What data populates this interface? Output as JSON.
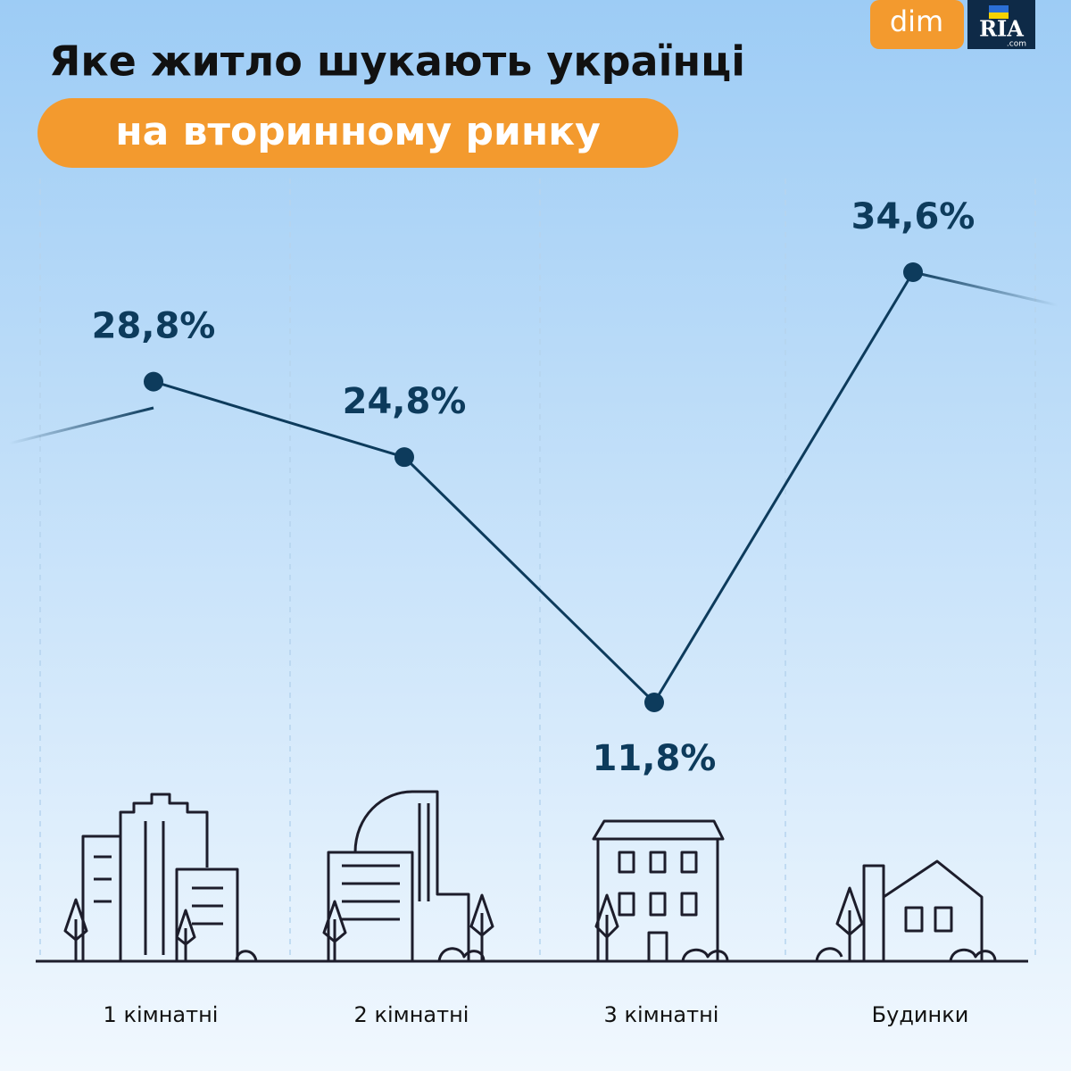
{
  "logo": {
    "brand": "dim",
    "mark": "RIA",
    "domain": ".com"
  },
  "chart_data": {
    "type": "line",
    "title": "Яке житло шукають українці",
    "subtitle": "на вторинному ринку",
    "categories": [
      "1 кімнатні",
      "2 кімнатні",
      "3 кімнатні",
      "Будинки"
    ],
    "values": [
      28.8,
      24.8,
      11.8,
      34.6
    ],
    "value_labels": [
      "28,8%",
      "24,8%",
      "11,8%",
      "34,6%"
    ],
    "color": "#0d3b5c"
  }
}
